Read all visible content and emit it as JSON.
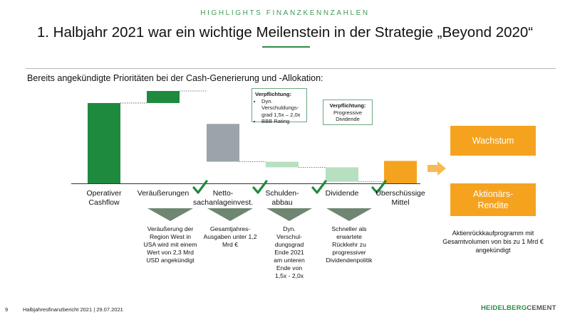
{
  "header": {
    "kicker": "HIGHLIGHTS FINANZKENNZAHLEN",
    "title": "1. Halbjahr 2021 war ein wichtige Meilenstein in der Strategie „Beyond 2020“",
    "subtitle": "Bereits angekündigte Prioritäten bei der Cash-Generierung und -Allokation:"
  },
  "chart_data": {
    "type": "bar",
    "variant": "waterfall",
    "categories": [
      "Operativer Cashflow",
      "Veräußerungen",
      "Nettosachanlageinvest.",
      "Schuldenabbau",
      "Dividende",
      "Überschüssige Mittel"
    ],
    "label_lines": [
      [
        "Operativer",
        "Cashflow"
      ],
      [
        "Veräußerungen"
      ],
      [
        "Netto-",
        "sachanlageinvest."
      ],
      [
        "Schulden-",
        "abbau"
      ],
      [
        "Dividende"
      ],
      [
        "Überschüssige",
        "Mittel"
      ]
    ],
    "start": [
      0,
      100,
      74,
      27,
      20,
      0
    ],
    "end": [
      100,
      115,
      27,
      20,
      2,
      28
    ],
    "colors": [
      "#1e8a3e",
      "#1e8a3e",
      "#9aa4a9",
      "#b7e0c0",
      "#b7e0c0",
      "#f5a31f"
    ],
    "checked": [
      false,
      true,
      true,
      true,
      true,
      false
    ],
    "ylim": [
      0,
      115
    ]
  },
  "descriptions": [
    "Veräußerung der Region West in USA  wird mit einem Wert von 2,3 Mrd USD angekündigt",
    "Gesamtjahres-Ausgaben unter 1,2 Mrd €",
    "Dyn. Verschul-dungsgrad Ende 2021 am unteren Ende von 1,5x - 2,0x",
    "Schneller als erwartete Rückkehr zu progressiver Dividendenpolitik"
  ],
  "callouts": {
    "debt": {
      "heading": "Verpflichtung:",
      "items": [
        "Dyn. Verschuldungs-grad 1,5x – 2,0x",
        "BBB Rating"
      ]
    },
    "dividend": {
      "heading": "Verpflichtung:",
      "body": "Progressive Dividende"
    }
  },
  "allocation": {
    "growth": "Wachstum",
    "returns": "Aktionärs-Rendite",
    "buyback_note": "Aktienrückkaufprogramm mit Gesamtvolumen von bis zu 1 Mrd € angekündigt"
  },
  "footer": {
    "page": "9",
    "source": "Halbjahresfinanzbericht 2021 | 29.07.2021",
    "logo_part1": "HEIDELBERG",
    "logo_part2": "CEMENT"
  },
  "colors": {
    "green": "#1e8a3e",
    "grey": "#9aa4a9",
    "light_green": "#b7e0c0",
    "orange": "#f5a31f",
    "arrow_grey": "#6f8672"
  }
}
